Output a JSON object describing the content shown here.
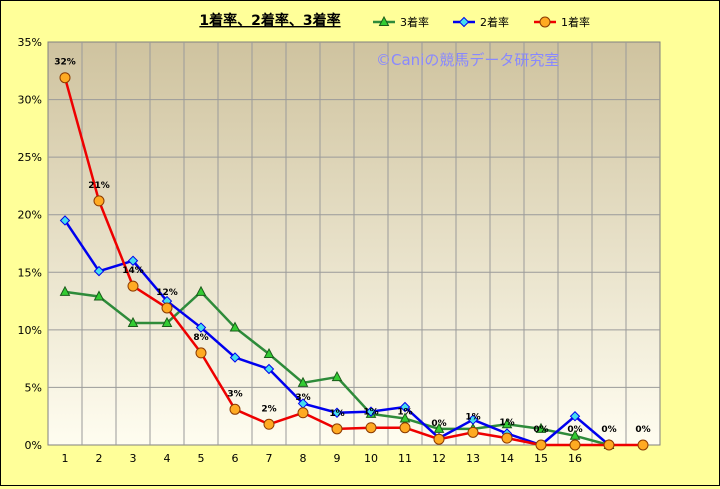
{
  "chart_data": {
    "type": "line",
    "title": "1着率、2着率、3着率",
    "watermark": "©Caniの競馬データ研究室",
    "xlabel": "",
    "ylabel": "",
    "x": [
      "1",
      "2",
      "3",
      "4",
      "5",
      "6",
      "7",
      "8",
      "9",
      "10",
      "11",
      "12",
      "13",
      "14",
      "15",
      "16",
      "17",
      "18"
    ],
    "x_tick_labels": [
      "1",
      "2",
      "3",
      "4",
      "5",
      "6",
      "7",
      "8",
      "9",
      "10",
      "11",
      "12",
      "13",
      "14",
      "15",
      "16",
      "",
      ""
    ],
    "ylim": [
      0,
      35
    ],
    "y_ticks": [
      0,
      5,
      10,
      15,
      20,
      25,
      30,
      35
    ],
    "y_tick_labels": [
      "0%",
      "5%",
      "10%",
      "15%",
      "20%",
      "25%",
      "30%",
      "35%"
    ],
    "grid": true,
    "legend_position": "top",
    "colors": {
      "page_background": "#ffff99",
      "plot_top": "#cfc39f",
      "plot_bottom": "#fffdf0",
      "grid": "#9a9a9a"
    },
    "series": [
      {
        "name": "3着率",
        "color": "#2e8b3a",
        "marker": "triangle",
        "marker_fill": "#33cc33",
        "values": [
          13.3,
          12.9,
          10.6,
          10.6,
          13.3,
          10.2,
          7.9,
          5.4,
          5.9,
          2.7,
          2.3,
          1.4,
          1.4,
          1.8,
          1.4,
          0.8,
          0,
          null
        ]
      },
      {
        "name": "2着率",
        "color": "#0000ee",
        "marker": "diamond",
        "marker_fill": "#44ddee",
        "values": [
          19.5,
          15.1,
          16.0,
          12.5,
          10.2,
          7.6,
          6.6,
          3.6,
          2.8,
          2.9,
          3.3,
          0.6,
          2.2,
          1.0,
          0,
          2.5,
          0,
          null
        ]
      },
      {
        "name": "1着率",
        "color": "#ee0000",
        "marker": "circle",
        "marker_fill": "#ffaa22",
        "values": [
          31.9,
          21.2,
          13.8,
          11.9,
          8.0,
          3.1,
          1.8,
          2.8,
          1.4,
          1.5,
          1.5,
          0.5,
          1.1,
          0.6,
          0,
          0,
          0,
          0
        ],
        "data_labels": [
          "32%",
          "21%",
          "14%",
          "12%",
          "8%",
          "3%",
          "2%",
          "3%",
          "1%",
          "1%",
          "1%",
          "0%",
          "1%",
          "1%",
          "0%",
          "0%",
          "0%",
          "0%"
        ]
      }
    ]
  }
}
